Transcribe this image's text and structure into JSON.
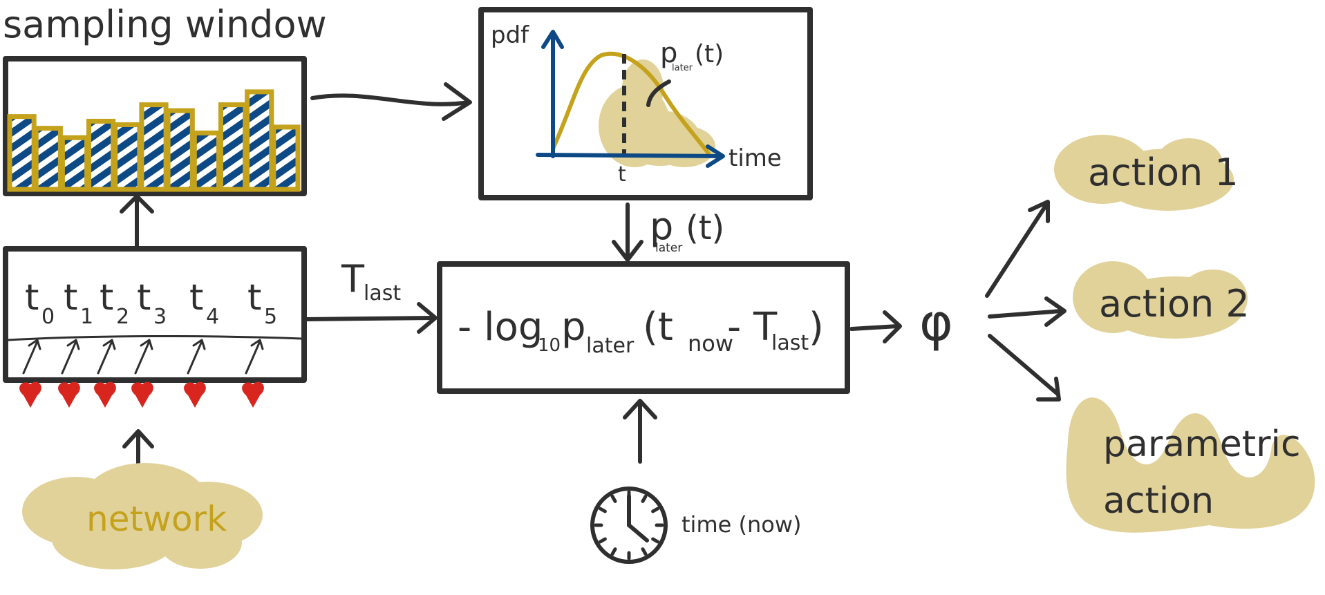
{
  "colors": {
    "ink": "#2f2f2f",
    "gold": "#c4a21c",
    "blue": "#0d4a85",
    "cloud": "#e1d29a",
    "heart": "#d8261f"
  },
  "sampling": {
    "title": "sampling window",
    "bar_levels": [
      0.62,
      0.52,
      0.44,
      0.58,
      0.55,
      0.72,
      0.67,
      0.48,
      0.72,
      0.83,
      0.53
    ]
  },
  "pdf_plot": {
    "y_label": "pdf",
    "x_label": "time",
    "t_tick": "t",
    "curve_label": "p",
    "curve_sub": "later",
    "curve_arg": "(t)"
  },
  "plater_arrow": {
    "label": "p",
    "sub": "later",
    "arg": "(t)"
  },
  "events": {
    "labels": [
      {
        "base": "t",
        "sub": "0"
      },
      {
        "base": "t",
        "sub": "1"
      },
      {
        "base": "t",
        "sub": "2"
      },
      {
        "base": "t",
        "sub": "3"
      },
      {
        "base": "t",
        "sub": "4"
      },
      {
        "base": "t",
        "sub": "5"
      }
    ]
  },
  "tlast": {
    "base": "T",
    "sub": "last"
  },
  "formula": {
    "minus": "- log",
    "log_sub": "10",
    "p": "p",
    "p_sub": "later",
    "open": "(t",
    "now_sub": "now",
    "dash": "- T",
    "last_sub": "last",
    "close": ")"
  },
  "network": {
    "label": "network"
  },
  "clock": {
    "label": "time (now)"
  },
  "phi": {
    "symbol": "φ"
  },
  "actions": [
    {
      "label": "action 1"
    },
    {
      "label": "action 2"
    },
    {
      "line1": "parametric",
      "line2": "action"
    }
  ]
}
